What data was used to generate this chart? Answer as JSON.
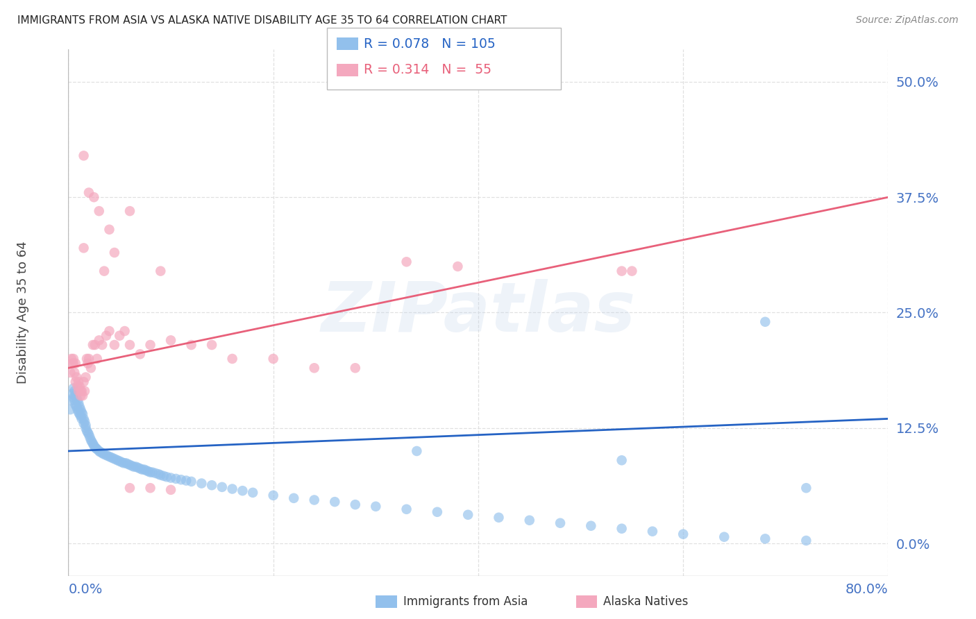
{
  "title": "IMMIGRANTS FROM ASIA VS ALASKA NATIVE DISABILITY AGE 35 TO 64 CORRELATION CHART",
  "source": "Source: ZipAtlas.com",
  "ylabel": "Disability Age 35 to 64",
  "ytick_labels": [
    "0.0%",
    "12.5%",
    "25.0%",
    "37.5%",
    "50.0%"
  ],
  "ytick_values": [
    0.0,
    0.125,
    0.25,
    0.375,
    0.5
  ],
  "xtick_labels": [
    "0.0%",
    "80.0%"
  ],
  "xmin": 0.0,
  "xmax": 0.8,
  "ymin": -0.035,
  "ymax": 0.535,
  "blue_R": 0.078,
  "blue_N": 105,
  "pink_R": 0.314,
  "pink_N": 55,
  "blue_color": "#92C0EC",
  "pink_color": "#F4A8BE",
  "blue_line_color": "#2563C4",
  "pink_line_color": "#E8607A",
  "axis_label_color": "#4472C4",
  "title_color": "#222222",
  "source_color": "#888888",
  "background_color": "#ffffff",
  "grid_color": "#e0e0e0",
  "watermark": "ZIPatlas",
  "blue_line_y_start": 0.1,
  "blue_line_y_end": 0.135,
  "pink_line_y_start": 0.19,
  "pink_line_y_end": 0.375,
  "blue_scatter_x": [
    0.002,
    0.003,
    0.004,
    0.005,
    0.005,
    0.006,
    0.006,
    0.007,
    0.007,
    0.008,
    0.008,
    0.009,
    0.009,
    0.01,
    0.01,
    0.011,
    0.011,
    0.012,
    0.012,
    0.013,
    0.013,
    0.014,
    0.015,
    0.015,
    0.016,
    0.017,
    0.017,
    0.018,
    0.019,
    0.02,
    0.021,
    0.022,
    0.023,
    0.024,
    0.025,
    0.026,
    0.027,
    0.028,
    0.03,
    0.031,
    0.033,
    0.034,
    0.036,
    0.038,
    0.04,
    0.042,
    0.044,
    0.046,
    0.048,
    0.05,
    0.052,
    0.054,
    0.056,
    0.058,
    0.06,
    0.062,
    0.064,
    0.066,
    0.068,
    0.07,
    0.072,
    0.074,
    0.076,
    0.078,
    0.08,
    0.082,
    0.085,
    0.088,
    0.09,
    0.093,
    0.096,
    0.1,
    0.105,
    0.11,
    0.115,
    0.12,
    0.13,
    0.14,
    0.15,
    0.16,
    0.17,
    0.18,
    0.2,
    0.22,
    0.24,
    0.26,
    0.28,
    0.3,
    0.33,
    0.36,
    0.39,
    0.42,
    0.45,
    0.48,
    0.51,
    0.54,
    0.57,
    0.6,
    0.64,
    0.68,
    0.72,
    0.34,
    0.54,
    0.68,
    0.72
  ],
  "blue_scatter_y": [
    0.145,
    0.155,
    0.162,
    0.168,
    0.158,
    0.165,
    0.155,
    0.16,
    0.15,
    0.158,
    0.148,
    0.155,
    0.145,
    0.152,
    0.142,
    0.148,
    0.14,
    0.145,
    0.138,
    0.142,
    0.135,
    0.14,
    0.135,
    0.13,
    0.132,
    0.128,
    0.125,
    0.122,
    0.12,
    0.118,
    0.115,
    0.112,
    0.11,
    0.108,
    0.106,
    0.104,
    0.103,
    0.102,
    0.1,
    0.099,
    0.098,
    0.097,
    0.096,
    0.095,
    0.094,
    0.093,
    0.092,
    0.091,
    0.09,
    0.089,
    0.088,
    0.087,
    0.087,
    0.086,
    0.085,
    0.084,
    0.083,
    0.083,
    0.082,
    0.081,
    0.08,
    0.08,
    0.079,
    0.078,
    0.077,
    0.077,
    0.076,
    0.075,
    0.074,
    0.073,
    0.072,
    0.071,
    0.07,
    0.069,
    0.068,
    0.067,
    0.065,
    0.063,
    0.061,
    0.059,
    0.057,
    0.055,
    0.052,
    0.049,
    0.047,
    0.045,
    0.042,
    0.04,
    0.037,
    0.034,
    0.031,
    0.028,
    0.025,
    0.022,
    0.019,
    0.016,
    0.013,
    0.01,
    0.007,
    0.005,
    0.003,
    0.1,
    0.09,
    0.24,
    0.06
  ],
  "pink_scatter_x": [
    0.002,
    0.003,
    0.004,
    0.005,
    0.005,
    0.006,
    0.007,
    0.007,
    0.008,
    0.009,
    0.01,
    0.01,
    0.011,
    0.012,
    0.012,
    0.013,
    0.014,
    0.015,
    0.016,
    0.017,
    0.018,
    0.019,
    0.02,
    0.022,
    0.024,
    0.026,
    0.028,
    0.03,
    0.033,
    0.037,
    0.04,
    0.045,
    0.05,
    0.055,
    0.06,
    0.07,
    0.08,
    0.09,
    0.1,
    0.12,
    0.14,
    0.16,
    0.2,
    0.24,
    0.28,
    0.33,
    0.015,
    0.025,
    0.035,
    0.045,
    0.38,
    0.54,
    0.06,
    0.08,
    0.1
  ],
  "pink_scatter_y": [
    0.185,
    0.2,
    0.195,
    0.2,
    0.195,
    0.185,
    0.195,
    0.175,
    0.18,
    0.17,
    0.175,
    0.165,
    0.17,
    0.165,
    0.16,
    0.165,
    0.16,
    0.175,
    0.165,
    0.18,
    0.2,
    0.195,
    0.2,
    0.19,
    0.215,
    0.215,
    0.2,
    0.22,
    0.215,
    0.225,
    0.23,
    0.215,
    0.225,
    0.23,
    0.215,
    0.205,
    0.215,
    0.295,
    0.22,
    0.215,
    0.215,
    0.2,
    0.2,
    0.19,
    0.19,
    0.305,
    0.32,
    0.375,
    0.295,
    0.315,
    0.3,
    0.295,
    0.06,
    0.06,
    0.058
  ],
  "pink_outliers_x": [
    0.015,
    0.02,
    0.03,
    0.04,
    0.06,
    0.55
  ],
  "pink_outliers_y": [
    0.42,
    0.38,
    0.36,
    0.34,
    0.36,
    0.295
  ]
}
